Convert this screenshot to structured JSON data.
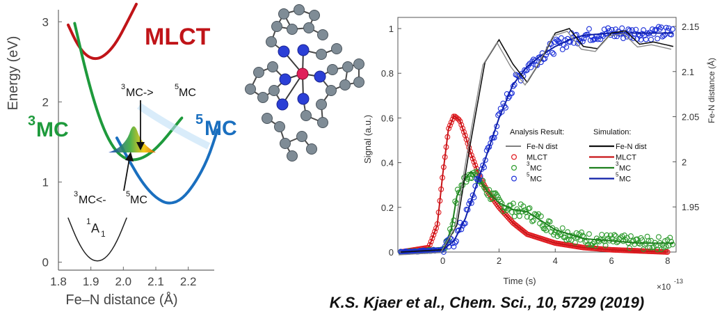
{
  "citation": "K.S. Kjaer et al., Chem. Sci., 10, 5729 (2019)",
  "chart_data": [
    {
      "type": "line",
      "xlabel": "Fe–N distance (Å)",
      "ylabel": "Energy (eV)",
      "xlim": [
        1.8,
        2.28
      ],
      "ylim": [
        -0.1,
        3.15
      ],
      "x_ticks": [
        "1.8",
        "1.9",
        "2.0",
        "2.1",
        "2.2"
      ],
      "y_ticks": [
        "0",
        "1",
        "2",
        "3"
      ],
      "series": [
        {
          "name": "MLCT",
          "color": "#c01418",
          "x": [
            1.83,
            1.86,
            1.89,
            1.92,
            1.95,
            1.98,
            2.01,
            2.04
          ],
          "y": [
            2.96,
            2.7,
            2.56,
            2.53,
            2.6,
            2.75,
            2.98,
            3.22
          ]
        },
        {
          "name": "3MC",
          "color": "#1e9a3c",
          "x": [
            1.85,
            1.88,
            1.91,
            1.94,
            1.97,
            2.0,
            2.03,
            2.06,
            2.09,
            2.12,
            2.15,
            2.18
          ],
          "y": [
            2.98,
            2.45,
            2.0,
            1.65,
            1.42,
            1.3,
            1.27,
            1.3,
            1.38,
            1.5,
            1.65,
            1.8
          ]
        },
        {
          "name": "5MC",
          "color": "#1a6fbf",
          "x": [
            1.98,
            2.02,
            2.06,
            2.1,
            2.14,
            2.18,
            2.22,
            2.26,
            2.29
          ],
          "y": [
            1.55,
            1.25,
            0.98,
            0.8,
            0.72,
            0.78,
            0.98,
            1.28,
            1.65
          ]
        },
        {
          "name": "1A1",
          "color": "#222222",
          "x": [
            1.83,
            1.86,
            1.89,
            1.92,
            1.95,
            1.98,
            2.01
          ],
          "y": [
            0.55,
            0.25,
            0.06,
            0.0,
            0.06,
            0.25,
            0.55
          ]
        }
      ],
      "state_labels": [
        "MLCT",
        "MC",
        "MC",
        "A"
      ],
      "state_superscripts": {
        "mc3": "3",
        "mc5": "5",
        "a1": "1"
      },
      "a1_subscript": "1",
      "annotations": [
        {
          "text": "MC->",
          "sup_pre": "3",
          "sup_mid": "5",
          "tail": "MC"
        },
        {
          "text": "MC<-",
          "sup_pre": "3",
          "sup_mid": "5",
          "tail": "MC"
        }
      ]
    },
    {
      "type": "scatter",
      "xlabel": "Time (s)",
      "ylabel": "Signal (a.u.)",
      "y2label": "Fe-N distance (Å)",
      "x_exponent": "×10",
      "x_exponent_power": "-13",
      "xlim": [
        -1.6,
        8.3
      ],
      "ylim": [
        0,
        1.05
      ],
      "y2lim": [
        1.9,
        2.16
      ],
      "x_ticks": [
        "0",
        "2",
        "4",
        "6",
        "8"
      ],
      "y_ticks": [
        "0",
        "0.2",
        "0.4",
        "0.6",
        "0.8",
        "1"
      ],
      "y2_ticks": [
        "1.95",
        "2",
        "2.05",
        "2.1",
        "2.15"
      ],
      "legend": {
        "position": "center-right",
        "col1_title": "Analysis Result:",
        "col2_title": "Simulation:",
        "rows": [
          {
            "label1": "Fe-N dist",
            "label2": "Fe-N dist",
            "sup": ""
          },
          {
            "label1": "MLCT",
            "label2": "MLCT",
            "sup": ""
          },
          {
            "label1": "MC",
            "label2": "MC",
            "sup": "3"
          },
          {
            "label1": "MC",
            "label2": "MC",
            "sup": "5"
          }
        ]
      },
      "series": [
        {
          "name": "MLCT",
          "color": "#e0191e",
          "x": [
            -1.5,
            -0.5,
            -0.2,
            0.0,
            0.2,
            0.4,
            0.6,
            0.8,
            1.0,
            1.3,
            1.6,
            2.0,
            2.5,
            3.0,
            4.0,
            5.0,
            6.0,
            8.0
          ],
          "y": [
            0.0,
            0.02,
            0.12,
            0.35,
            0.55,
            0.61,
            0.59,
            0.52,
            0.44,
            0.34,
            0.27,
            0.2,
            0.13,
            0.08,
            0.04,
            0.02,
            0.01,
            0.0
          ]
        },
        {
          "name": "3MC",
          "color": "#2b9a2b",
          "x": [
            -1.5,
            0.0,
            0.3,
            0.5,
            0.8,
            1.0,
            1.3,
            1.6,
            2.0,
            2.5,
            3.0,
            3.5,
            4.0,
            5.0,
            6.0,
            7.0,
            8.2
          ],
          "y": [
            0.0,
            0.01,
            0.1,
            0.25,
            0.33,
            0.36,
            0.32,
            0.27,
            0.22,
            0.19,
            0.18,
            0.14,
            0.1,
            0.06,
            0.05,
            0.04,
            0.04
          ]
        },
        {
          "name": "5MC",
          "color": "#1a2ed8",
          "x": [
            -1.5,
            0.0,
            0.4,
            0.8,
            1.2,
            1.6,
            2.0,
            2.5,
            3.0,
            3.5,
            4.0,
            4.5,
            5.0,
            6.0,
            7.0,
            8.2
          ],
          "y": [
            0.0,
            0.01,
            0.05,
            0.15,
            0.3,
            0.45,
            0.6,
            0.75,
            0.83,
            0.88,
            0.92,
            0.95,
            0.97,
            0.98,
            0.98,
            0.98
          ]
        },
        {
          "name": "Fe-N dist",
          "color": "#555555",
          "x": [
            -1.5,
            0.0,
            0.5,
            1.0,
            1.5,
            2.0,
            2.5,
            3.0,
            3.5,
            4.0,
            4.5,
            5.0,
            5.5,
            6.0,
            6.5,
            7.0,
            7.5,
            8.2
          ],
          "y": [
            0.0,
            0.01,
            0.12,
            0.5,
            0.85,
            0.95,
            0.84,
            0.76,
            0.86,
            0.98,
            1.0,
            0.92,
            0.91,
            0.98,
            0.99,
            0.93,
            0.94,
            0.92
          ]
        }
      ]
    }
  ]
}
